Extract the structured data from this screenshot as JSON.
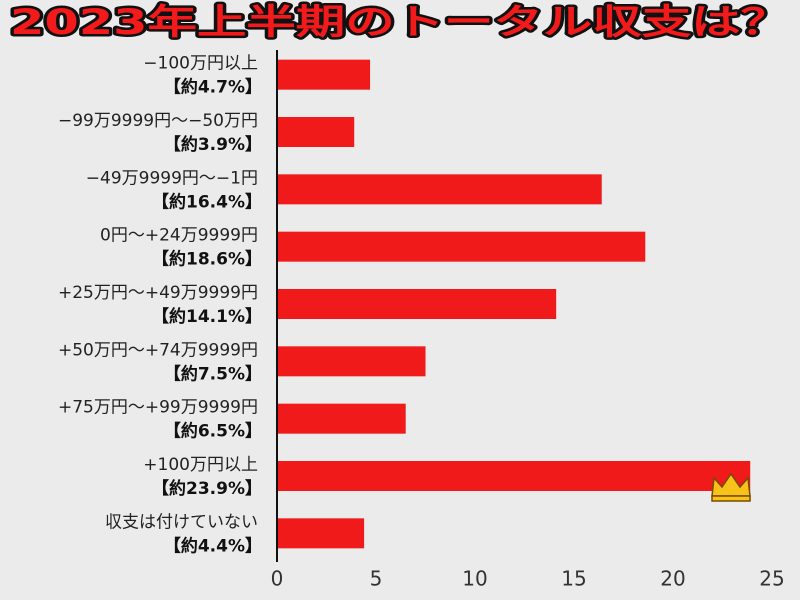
{
  "chart_data": {
    "type": "bar",
    "orientation": "horizontal",
    "title": "2023年上半期のトータル収支は？",
    "categories": [
      "−100万円以上",
      "−99万9999円〜−50万円",
      "−49万9999円〜−1円",
      "0円〜+24万9999円",
      "+25万円〜+49万9999円",
      "+50万円〜+74万9999円",
      "+75万円〜+99万9999円",
      "+100万円以上",
      "収支は付けていない"
    ],
    "values": [
      4.7,
      3.9,
      16.4,
      18.6,
      14.1,
      7.5,
      6.5,
      23.9,
      4.4
    ],
    "value_labels": [
      "【約4.7%】",
      "【約3.9%】",
      "【約16.4%】",
      "【約18.6%】",
      "【約14.1%】",
      "【約7.5%】",
      "【約6.5%】",
      "【約23.9%】",
      "【約4.4%】"
    ],
    "color": "#f01a1a",
    "xlim": [
      0,
      25
    ],
    "xticks": [
      0,
      5,
      10,
      15,
      20,
      25
    ],
    "grid": false
  }
}
